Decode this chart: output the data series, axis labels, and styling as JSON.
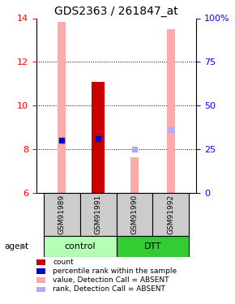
{
  "title": "GDS2363 / 261847_at",
  "samples": [
    "GSM91989",
    "GSM91991",
    "GSM91990",
    "GSM91992"
  ],
  "ylim": [
    6,
    14
  ],
  "y_left_ticks": [
    6,
    8,
    10,
    12,
    14
  ],
  "y_right_labels": [
    "0",
    "25",
    "50",
    "75",
    "100%"
  ],
  "y_right_vals": [
    6,
    8,
    10,
    12,
    14
  ],
  "ytick_dotted": [
    8,
    10,
    12
  ],
  "bar_values": [
    null,
    11.1,
    null,
    null
  ],
  "bar_color": "#cc0000",
  "pink_bar_values": [
    13.85,
    null,
    7.65,
    13.5
  ],
  "pink_bar_color": "#ffaaaa",
  "blue_dot_values": [
    8.4,
    8.5,
    8.0,
    8.9
  ],
  "blue_dot_colors": [
    "#0000cc",
    "#0000cc",
    "#aaaaff",
    "#aaaaff"
  ],
  "bar_width": 0.35,
  "pink_bar_width": 0.22,
  "label_area_color": "#cccccc",
  "control_color": "#b3ffb3",
  "dtt_color": "#33cc33",
  "control_label": "control",
  "dtt_label": "DTT",
  "agent_label": "agent",
  "legend_items": [
    {
      "color": "#cc0000",
      "label": "count"
    },
    {
      "color": "#0000cc",
      "label": "percentile rank within the sample"
    },
    {
      "color": "#ffaaaa",
      "label": "value, Detection Call = ABSENT"
    },
    {
      "color": "#aaaaff",
      "label": "rank, Detection Call = ABSENT"
    }
  ],
  "title_fontsize": 10,
  "tick_fontsize": 8,
  "sample_fontsize": 6.5,
  "group_fontsize": 8,
  "legend_fontsize": 6.5
}
